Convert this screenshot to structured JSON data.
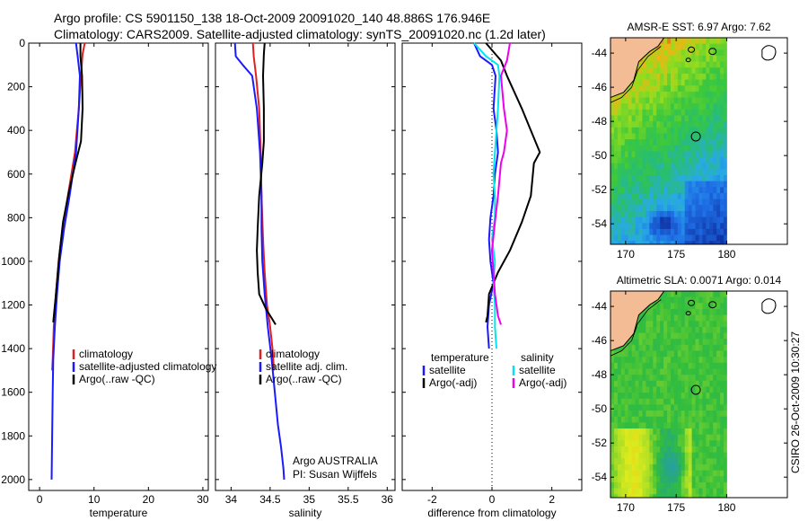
{
  "header": {
    "line1": "Argo profile: CS 5901150_138 18-Oct-2009 20091020_140 48.886S 176.946E",
    "line2": "Climatology: CARS2009. Satellite-adjusted climatology: synTS_20091020.nc (1.2d later)"
  },
  "side_stamp": "CSIRO 26-Oct-2009 10:30:27",
  "colors": {
    "climatology": "#e02020",
    "satellite": "#1a1aff",
    "argo": "#000000",
    "sat_salinity": "#00e5ee",
    "argo_salinity": "#ee00ee",
    "land": "#f4bc94"
  },
  "chart_data": [
    {
      "type": "line",
      "xlabel": "temperature",
      "ylabel": "",
      "xlim": [
        -2,
        31
      ],
      "ylim": [
        2050,
        0
      ],
      "xticks": [
        0,
        10,
        20,
        30
      ],
      "yticks": [
        0,
        200,
        400,
        600,
        800,
        1000,
        1200,
        1400,
        1600,
        1800,
        2000
      ],
      "legend": [
        "climatology",
        "satellite-adjusted climatology",
        "Argo(..raw -QC)"
      ],
      "legend_position": "lower-middle",
      "series": [
        {
          "name": "climatology",
          "color_key": "climatology",
          "x": [
            8.3,
            7.9,
            7.6,
            7.2,
            6.5,
            5.2,
            4.2,
            3.5,
            3.0,
            2.6,
            2.4,
            2.3
          ],
          "y": [
            0,
            50,
            150,
            300,
            500,
            700,
            850,
            1000,
            1150,
            1300,
            1450,
            1500
          ]
        },
        {
          "name": "satellite-adjusted climatology",
          "color_key": "satellite",
          "x": [
            6.7,
            7.0,
            7.4,
            7.2,
            6.7,
            5.5,
            4.5,
            3.7,
            3.2,
            2.8,
            2.5,
            2.4,
            2.3,
            2.2
          ],
          "y": [
            0,
            60,
            150,
            300,
            500,
            700,
            850,
            1000,
            1150,
            1300,
            1450,
            1600,
            1800,
            2000
          ]
        },
        {
          "name": "Argo(..raw -QC)",
          "color_key": "argo",
          "x": [
            7.5,
            7.5,
            7.8,
            7.9,
            7.6,
            6.6,
            5.4,
            4.3,
            3.6,
            3.0,
            2.5
          ],
          "y": [
            0,
            60,
            150,
            300,
            450,
            550,
            680,
            820,
            980,
            1150,
            1280
          ]
        }
      ]
    },
    {
      "type": "line",
      "xlabel": "salinity",
      "ylabel": "",
      "xlim": [
        33.8,
        36.1
      ],
      "ylim": [
        2050,
        0
      ],
      "xticks": [
        34,
        34.5,
        35,
        35.5,
        36
      ],
      "yticks": [
        0,
        200,
        400,
        600,
        800,
        1000,
        1200,
        1400,
        1600,
        1800,
        2000
      ],
      "legend": [
        "climatology",
        "satellite adj. clim.",
        "Argo(..raw -QC)"
      ],
      "legend_position": "lower-middle",
      "annotations": [
        "Argo AUSTRALIA",
        "PI: Susan Wijffels"
      ],
      "series": [
        {
          "name": "climatology",
          "color_key": "climatology",
          "x": [
            34.28,
            34.29,
            34.32,
            34.36,
            34.38,
            34.39,
            34.41,
            34.43,
            34.46,
            34.5,
            34.53,
            34.55
          ],
          "y": [
            0,
            60,
            150,
            300,
            500,
            700,
            900,
            1050,
            1200,
            1300,
            1400,
            1500
          ]
        },
        {
          "name": "satellite adj. clim.",
          "color_key": "satellite",
          "x": [
            34.05,
            34.06,
            34.15,
            34.27,
            34.33,
            34.37,
            34.39,
            34.39,
            34.4,
            34.43,
            34.47,
            34.52,
            34.56,
            34.6,
            34.64,
            34.67,
            34.68
          ],
          "y": [
            0,
            60,
            100,
            150,
            300,
            500,
            700,
            850,
            1000,
            1150,
            1300,
            1450,
            1600,
            1750,
            1850,
            1950,
            2000
          ]
        },
        {
          "name": "Argo(..raw -QC)",
          "color_key": "argo",
          "x": [
            34.43,
            34.42,
            34.41,
            34.42,
            34.42,
            34.4,
            34.36,
            34.34,
            34.33,
            34.34,
            34.36,
            34.45,
            34.52,
            34.57
          ],
          "y": [
            0,
            50,
            150,
            300,
            450,
            550,
            700,
            850,
            950,
            1050,
            1150,
            1220,
            1260,
            1290
          ]
        }
      ]
    },
    {
      "type": "line",
      "xlabel": "difference from climatology",
      "ylabel": "",
      "xlim": [
        -3,
        3
      ],
      "ylim": [
        2050,
        0
      ],
      "xticks": [
        -2,
        0,
        2
      ],
      "yticks": [
        0,
        200,
        400,
        600,
        800,
        1000,
        1200,
        1400,
        1600,
        1800,
        2000
      ],
      "legend_temperature_header": "temperature",
      "legend_salinity_header": "salinity",
      "legend": [
        "satellite",
        "Argo(-adj)",
        "satellite",
        "Argo(-adj)"
      ],
      "legend_position": "lower-middle",
      "series": [
        {
          "name": "satellite",
          "group": "temperature",
          "color_key": "satellite",
          "x": [
            -0.6,
            -0.4,
            0,
            0.12,
            0.05,
            0.15,
            0.2,
            0.1,
            0.05,
            -0.05,
            -0.1,
            -0.05,
            0.05,
            -0.1,
            -0.15,
            -0.1
          ],
          "y": [
            0,
            60,
            100,
            150,
            300,
            400,
            500,
            600,
            700,
            800,
            900,
            1000,
            1100,
            1200,
            1300,
            1400
          ]
        },
        {
          "name": "Argo(-adj)",
          "group": "temperature",
          "color_key": "argo",
          "x": [
            -0.2,
            0.3,
            0.5,
            1.0,
            1.3,
            1.6,
            1.4,
            1.3,
            1.0,
            0.6,
            0.2,
            -0.1,
            -0.15,
            -0.2
          ],
          "y": [
            0,
            80,
            150,
            300,
            400,
            500,
            550,
            700,
            820,
            950,
            1050,
            1150,
            1250,
            1280
          ]
        },
        {
          "name": "satellite",
          "group": "salinity",
          "color_key": "sat_salinity",
          "x": [
            -0.6,
            -0.2,
            0.2,
            0.25,
            0.2,
            0.15,
            0.1,
            0.05,
            0.1,
            0.1,
            0.0,
            0.1,
            0.05,
            0.1,
            0.1,
            0.15
          ],
          "y": [
            0,
            60,
            100,
            150,
            300,
            400,
            500,
            600,
            700,
            800,
            900,
            1000,
            1100,
            1200,
            1300,
            1400
          ]
        },
        {
          "name": "Argo(-adj)",
          "group": "salinity",
          "color_key": "argo_salinity",
          "x": [
            0.6,
            0.5,
            0.3,
            0.4,
            0.5,
            0.4,
            0.3,
            0.2,
            0.1,
            0.0,
            0.05,
            0.1,
            0.2,
            0.3
          ],
          "y": [
            0,
            80,
            150,
            300,
            400,
            500,
            550,
            700,
            820,
            950,
            1050,
            1150,
            1250,
            1290
          ]
        }
      ]
    },
    {
      "type": "heatmap",
      "title": "AMSR-E SST: 6.97 Argo: 7.62",
      "xticks": [
        170,
        175,
        180
      ],
      "yticks": [
        -44,
        -46,
        -48,
        -50,
        -52,
        -54
      ],
      "xlim": [
        168.5,
        186
      ],
      "ylim": [
        -55.2,
        -43.1
      ],
      "data_xlim": [
        168.5,
        180
      ],
      "argo_position": {
        "lon": 176.946,
        "lat": -48.886
      }
    },
    {
      "type": "heatmap",
      "title": "Altimetric SLA: 0.0071 Argo: 0.014",
      "xticks": [
        170,
        175,
        180
      ],
      "yticks": [
        -44,
        -46,
        -48,
        -50,
        -52,
        -54
      ],
      "xlim": [
        168.5,
        186
      ],
      "ylim": [
        -55.2,
        -43.1
      ],
      "data_xlim": [
        168.5,
        180
      ],
      "argo_position": {
        "lon": 176.946,
        "lat": -48.886
      }
    }
  ]
}
